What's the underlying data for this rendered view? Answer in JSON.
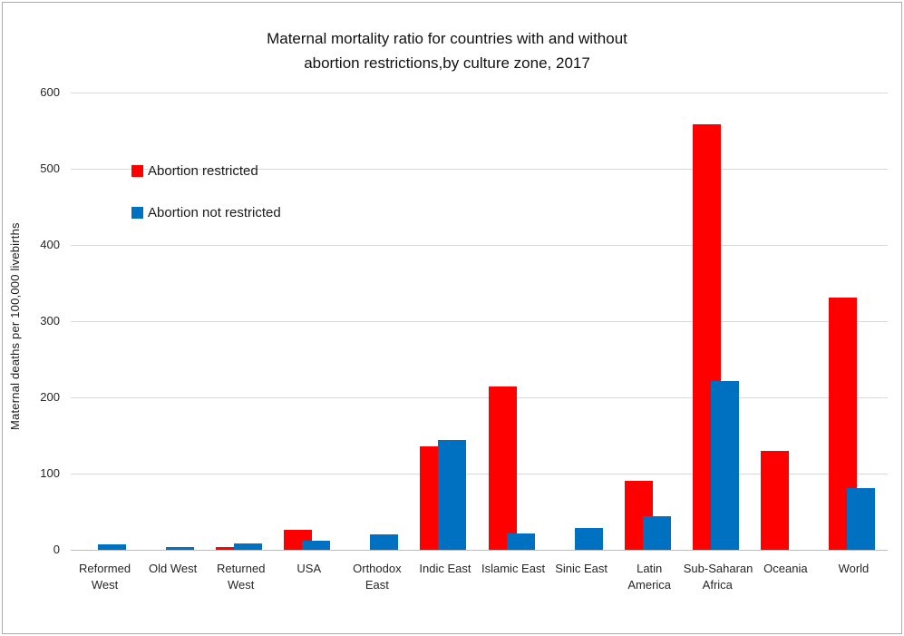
{
  "chart_data": {
    "type": "bar",
    "title": "Maternal mortality ratio for countries with and without abortion restrictions,by culture zone, 2017",
    "title_lines": [
      "Maternal mortality ratio for countries with and without",
      "abortion restrictions,by culture zone, 2017"
    ],
    "ylabel": "Maternal deaths per 100,000 livebirths",
    "xlabel": "",
    "ylim": [
      0,
      600
    ],
    "yticks": [
      0,
      100,
      200,
      300,
      400,
      500,
      600
    ],
    "grid": true,
    "legend_position": "inside-top-left",
    "categories": [
      "Reformed West",
      "Old West",
      "Returned West",
      "USA",
      "Orthodox East",
      "Indic East",
      "Islamic East",
      "Sinic East",
      "Latin America",
      "Sub-Saharan Africa",
      "Oceania",
      "World"
    ],
    "category_label_lines": [
      [
        "Reformed",
        "West"
      ],
      [
        "Old West"
      ],
      [
        "Returned",
        "West"
      ],
      [
        "USA"
      ],
      [
        "Orthodox",
        "East"
      ],
      [
        "Indic East"
      ],
      [
        "Islamic East"
      ],
      [
        "Sinic East"
      ],
      [
        "Latin",
        "America"
      ],
      [
        "Sub-Saharan",
        "Africa"
      ],
      [
        "Oceania"
      ],
      [
        "World"
      ]
    ],
    "series": [
      {
        "name": "Abortion restricted",
        "color": "#fe0000",
        "values": [
          0,
          0,
          3,
          26,
          0,
          136,
          214,
          0,
          91,
          558,
          130,
          331
        ]
      },
      {
        "name": "Abortion not restricted",
        "color": "#0070c0",
        "values": [
          7,
          4,
          8,
          12,
          20,
          144,
          21,
          29,
          44,
          222,
          0,
          81
        ]
      }
    ],
    "colors": {
      "gridline": "#d9d9d9",
      "axis_line": "#bfbfbf",
      "text": "#262626",
      "background": "#ffffff",
      "frame_border": "#ababab"
    }
  }
}
